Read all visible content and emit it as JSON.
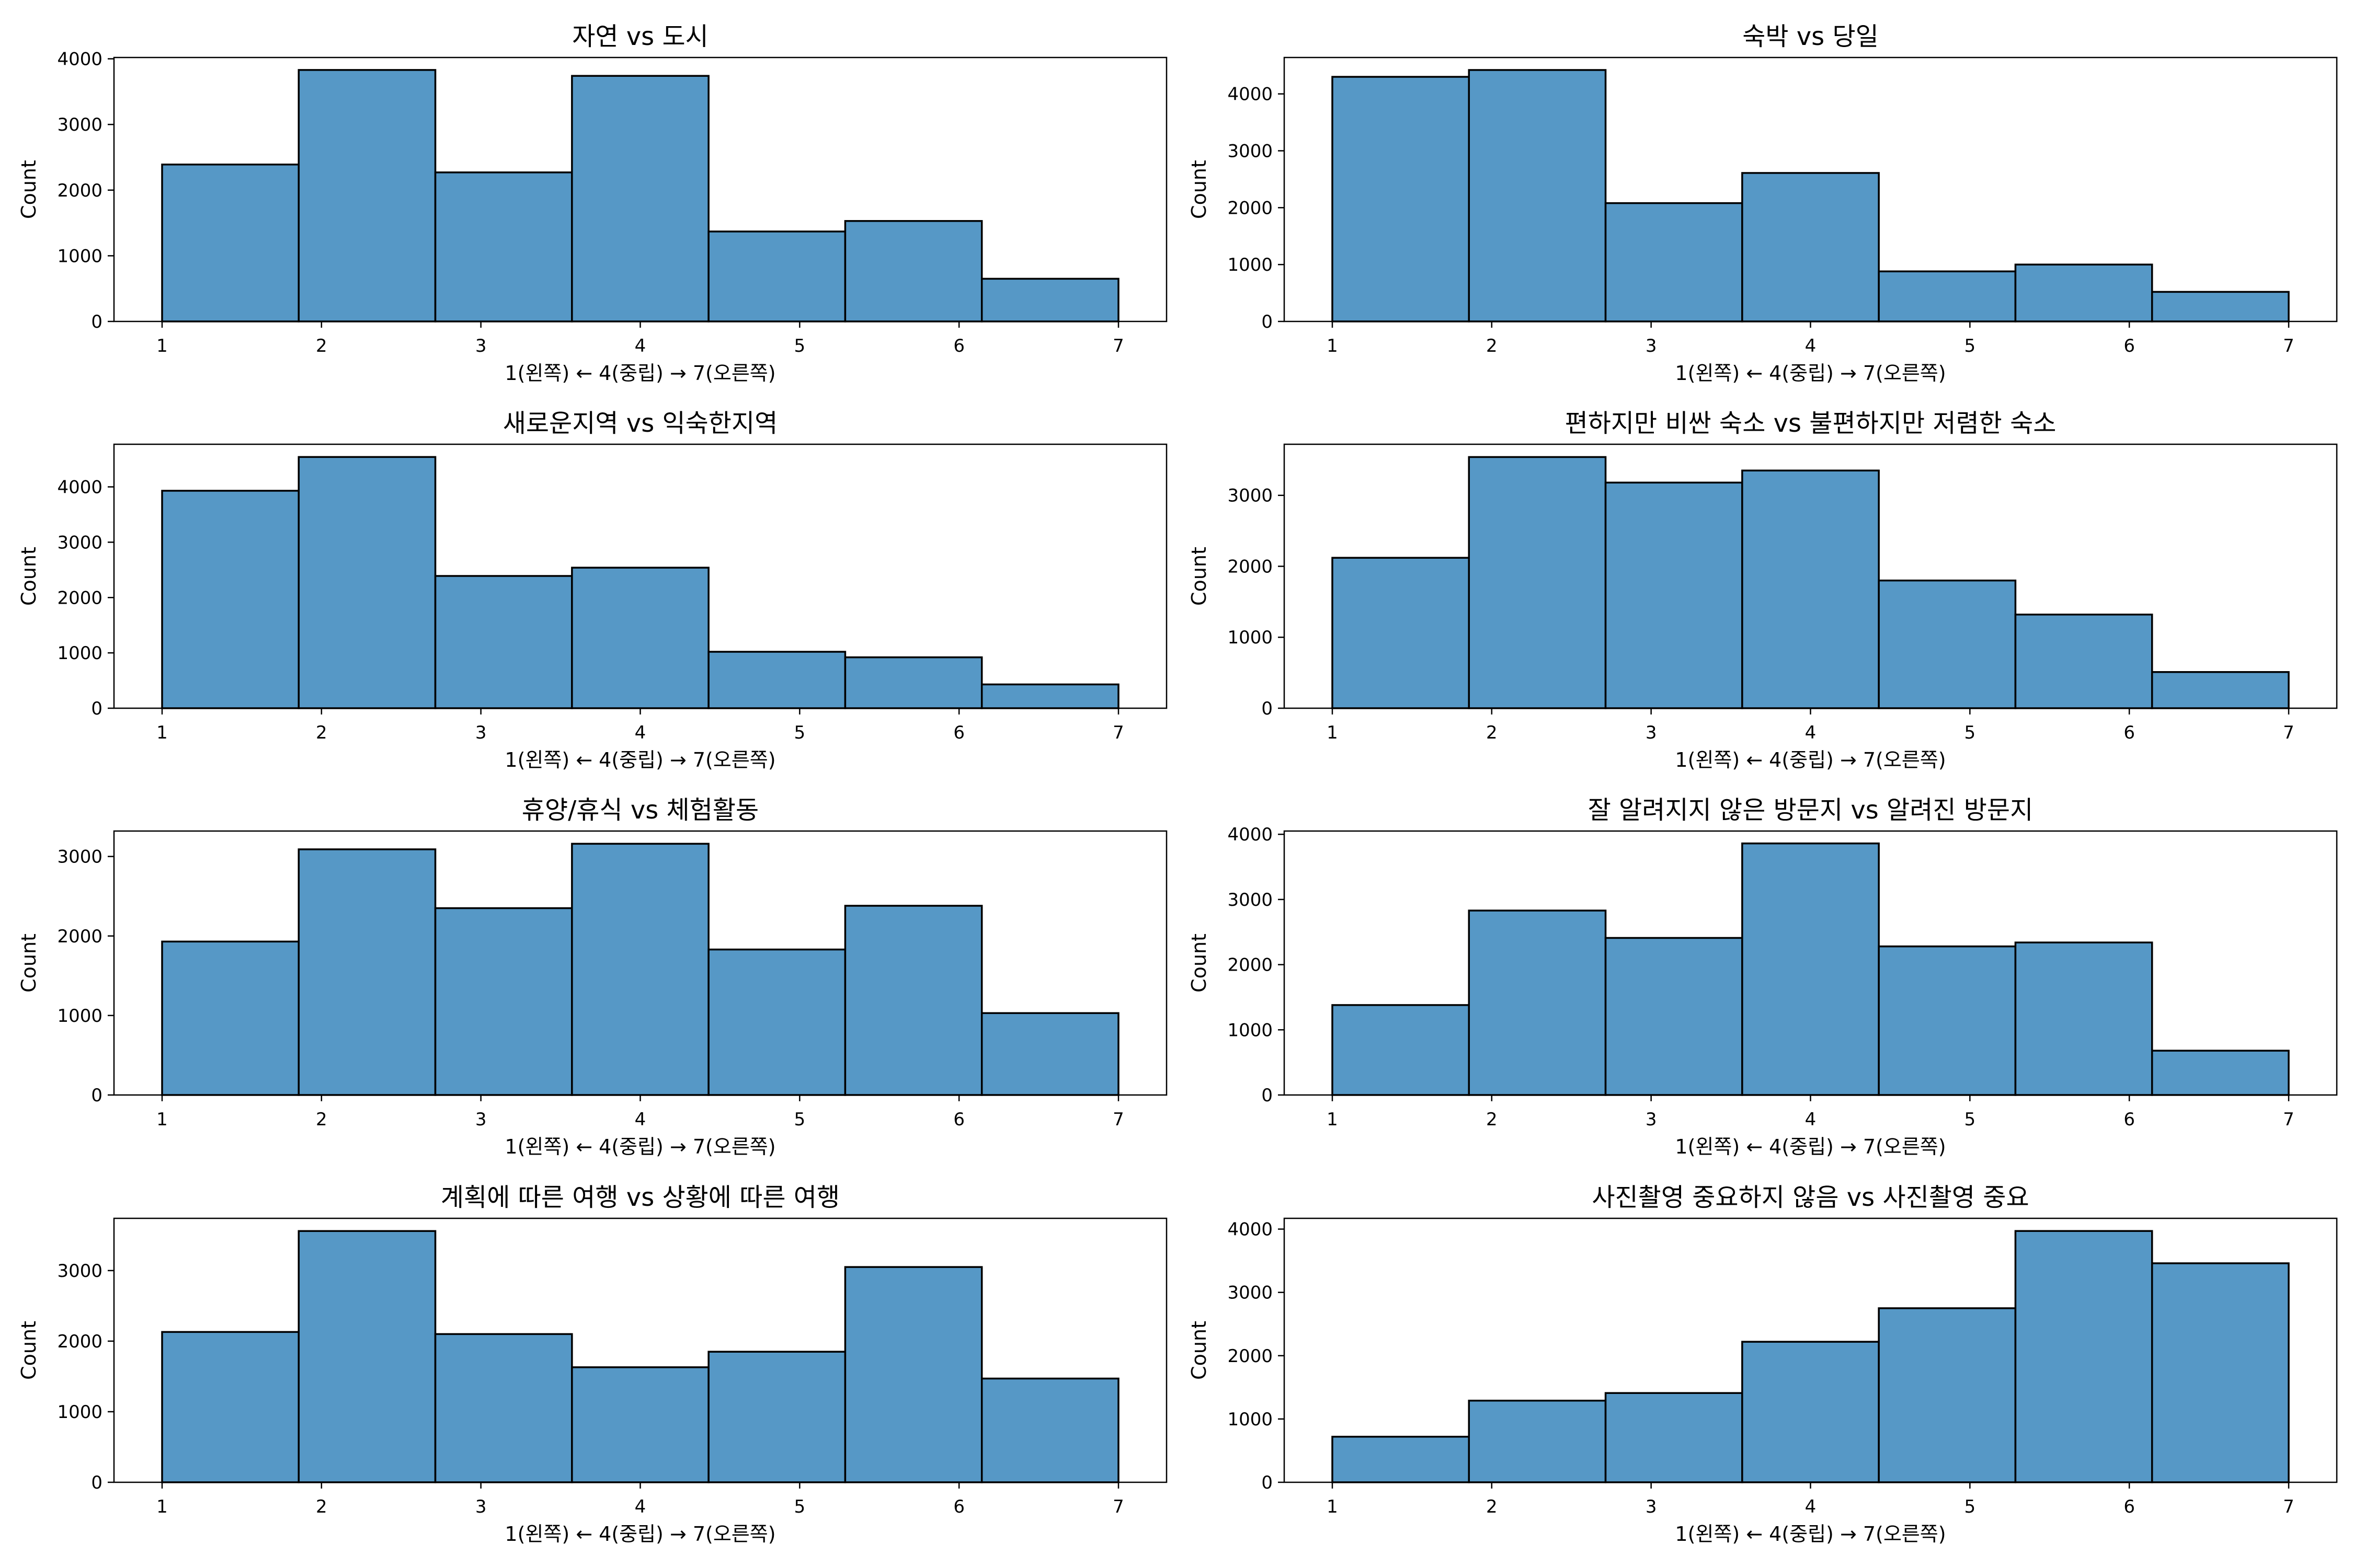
{
  "chart_data": [
    {
      "type": "bar",
      "title": "자연 vs 도시",
      "xlabel": "1(왼쪽) ← 4(중립) → 7(오른쪽)",
      "ylabel": "Count",
      "bin_range": [
        1,
        7
      ],
      "bins": 7,
      "values": [
        2390,
        3830,
        2270,
        3740,
        1370,
        1530,
        650
      ],
      "xticks": [
        "1",
        "2",
        "3",
        "4",
        "5",
        "6",
        "7"
      ],
      "yticks": [
        0,
        1000,
        2000,
        3000,
        4000
      ],
      "ylim": [
        0,
        4020
      ],
      "color": "#5698C6"
    },
    {
      "type": "bar",
      "title": "숙박 vs 당일",
      "xlabel": "1(왼쪽) ← 4(중립) → 7(오른쪽)",
      "ylabel": "Count",
      "bin_range": [
        1,
        7
      ],
      "bins": 7,
      "values": [
        4300,
        4420,
        2080,
        2610,
        880,
        1000,
        520
      ],
      "xticks": [
        "1",
        "2",
        "3",
        "4",
        "5",
        "6",
        "7"
      ],
      "yticks": [
        0,
        1000,
        2000,
        3000,
        4000
      ],
      "ylim": [
        0,
        4640
      ],
      "color": "#5698C6"
    },
    {
      "type": "bar",
      "title": "새로운지역 vs 익숙한지역",
      "xlabel": "1(왼쪽) ← 4(중립) → 7(오른쪽)",
      "ylabel": "Count",
      "bin_range": [
        1,
        7
      ],
      "bins": 7,
      "values": [
        3930,
        4540,
        2390,
        2540,
        1020,
        920,
        430
      ],
      "xticks": [
        "1",
        "2",
        "3",
        "4",
        "5",
        "6",
        "7"
      ],
      "yticks": [
        0,
        1000,
        2000,
        3000,
        4000
      ],
      "ylim": [
        0,
        4770
      ],
      "color": "#5698C6"
    },
    {
      "type": "bar",
      "title": "편하지만 비싼 숙소 vs 불편하지만 저렴한 숙소",
      "xlabel": "1(왼쪽) ← 4(중립) → 7(오른쪽)",
      "ylabel": "Count",
      "bin_range": [
        1,
        7
      ],
      "bins": 7,
      "values": [
        2120,
        3540,
        3180,
        3350,
        1800,
        1320,
        510
      ],
      "xticks": [
        "1",
        "2",
        "3",
        "4",
        "5",
        "6",
        "7"
      ],
      "yticks": [
        0,
        1000,
        2000,
        3000
      ],
      "ylim": [
        0,
        3720
      ],
      "color": "#5698C6"
    },
    {
      "type": "bar",
      "title": "휴양/휴식 vs 체험활동",
      "xlabel": "1(왼쪽) ← 4(중립) → 7(오른쪽)",
      "ylabel": "Count",
      "bin_range": [
        1,
        7
      ],
      "bins": 7,
      "values": [
        1930,
        3090,
        2350,
        3160,
        1830,
        2380,
        1030
      ],
      "xticks": [
        "1",
        "2",
        "3",
        "4",
        "5",
        "6",
        "7"
      ],
      "yticks": [
        0,
        1000,
        2000,
        3000
      ],
      "ylim": [
        0,
        3320
      ],
      "color": "#5698C6"
    },
    {
      "type": "bar",
      "title": "잘 알려지지 않은 방문지 vs 알려진 방문지",
      "xlabel": "1(왼쪽) ← 4(중립) → 7(오른쪽)",
      "ylabel": "Count",
      "bin_range": [
        1,
        7
      ],
      "bins": 7,
      "values": [
        1380,
        2830,
        2410,
        3860,
        2280,
        2340,
        680
      ],
      "xticks": [
        "1",
        "2",
        "3",
        "4",
        "5",
        "6",
        "7"
      ],
      "yticks": [
        0,
        1000,
        2000,
        3000,
        4000
      ],
      "ylim": [
        0,
        4050
      ],
      "color": "#5698C6"
    },
    {
      "type": "bar",
      "title": "계획에 따른 여행 vs 상황에 따른 여행",
      "xlabel": "1(왼쪽) ← 4(중립) → 7(오른쪽)",
      "ylabel": "Count",
      "bin_range": [
        1,
        7
      ],
      "bins": 7,
      "values": [
        2130,
        3560,
        2100,
        1630,
        1850,
        3050,
        1470
      ],
      "xticks": [
        "1",
        "2",
        "3",
        "4",
        "5",
        "6",
        "7"
      ],
      "yticks": [
        0,
        1000,
        2000,
        3000
      ],
      "ylim": [
        0,
        3740
      ],
      "color": "#5698C6"
    },
    {
      "type": "bar",
      "title": "사진촬영 중요하지 않음 vs 사진촬영 중요",
      "xlabel": "1(왼쪽) ← 4(중립) → 7(오른쪽)",
      "ylabel": "Count",
      "bin_range": [
        1,
        7
      ],
      "bins": 7,
      "values": [
        720,
        1290,
        1410,
        2220,
        2750,
        3970,
        3460
      ],
      "xticks": [
        "1",
        "2",
        "3",
        "4",
        "5",
        "6",
        "7"
      ],
      "yticks": [
        0,
        1000,
        2000,
        3000,
        4000
      ],
      "ylim": [
        0,
        4170
      ],
      "color": "#5698C6"
    }
  ]
}
